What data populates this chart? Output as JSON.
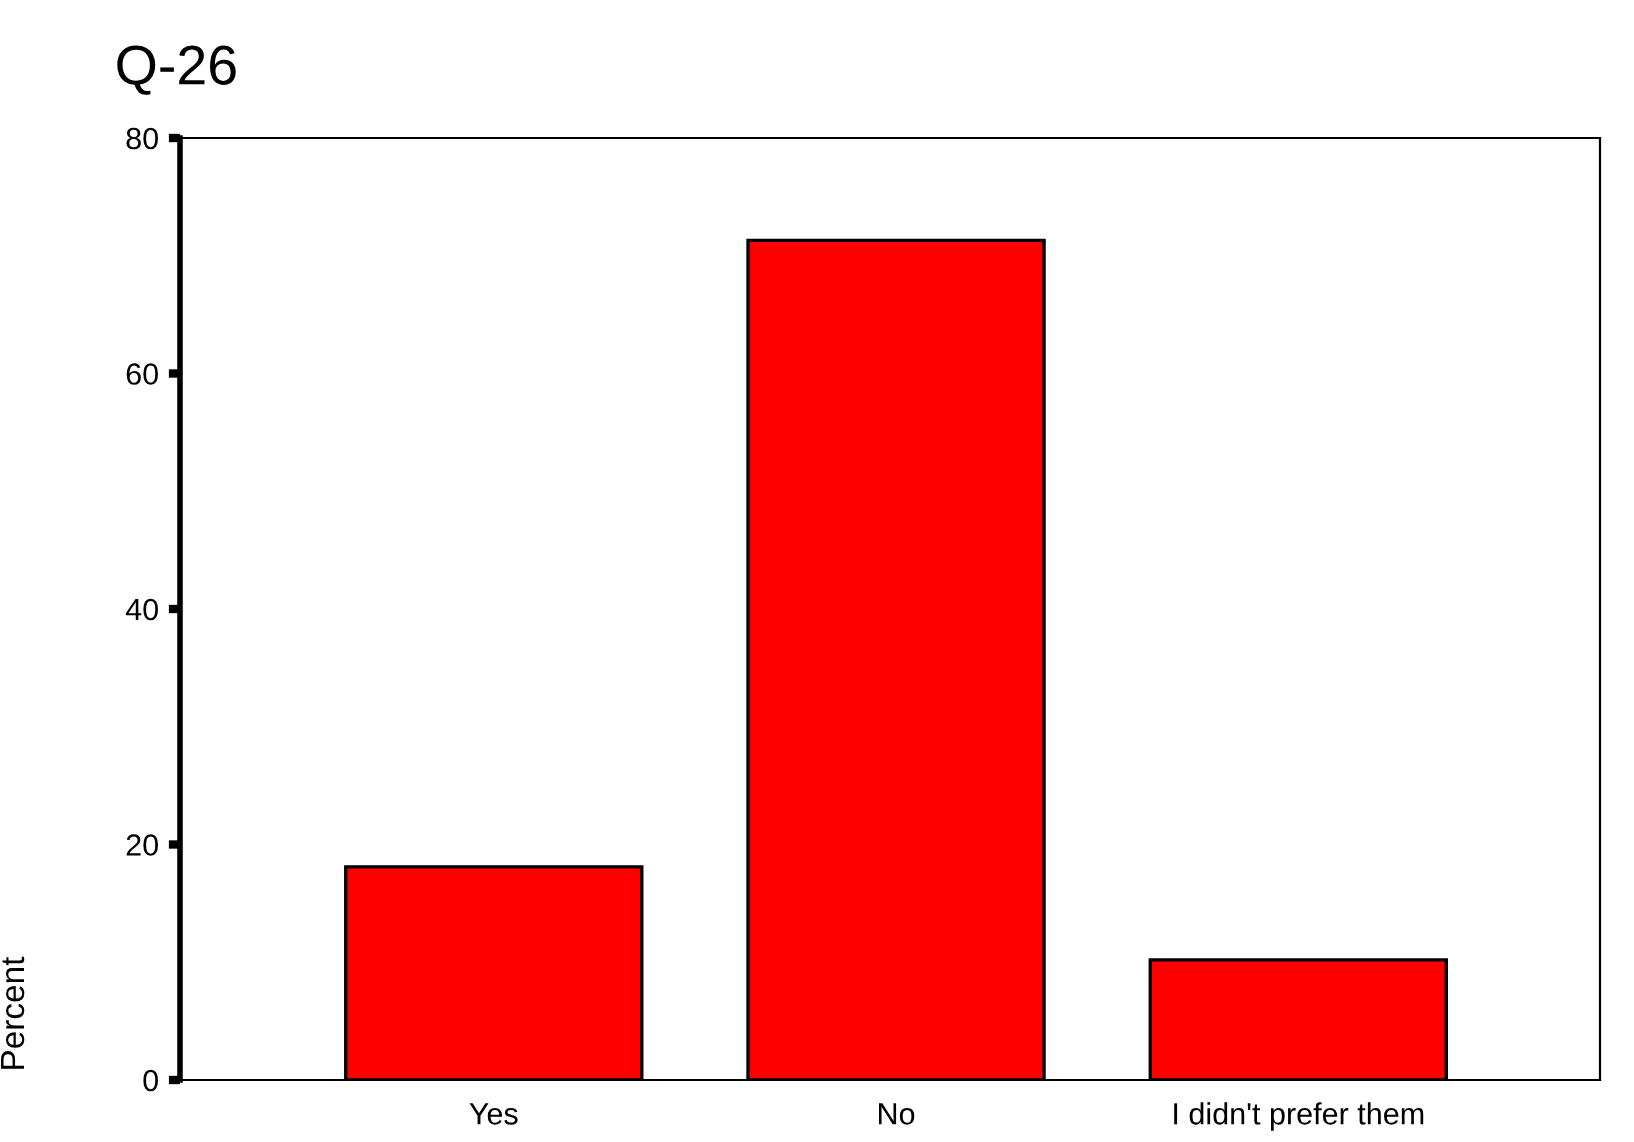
{
  "chart_data": {
    "type": "bar",
    "title": "Q-26",
    "ylabel": "Percent",
    "categories": [
      "Yes",
      "No",
      "I didn't prefer them"
    ],
    "values": [
      18.1,
      71.3,
      10.2
    ],
    "color": "#ff0000",
    "ylim": [
      0,
      80
    ],
    "yticks": [
      0,
      20,
      40,
      60,
      80
    ],
    "grid": false,
    "legend": false
  }
}
